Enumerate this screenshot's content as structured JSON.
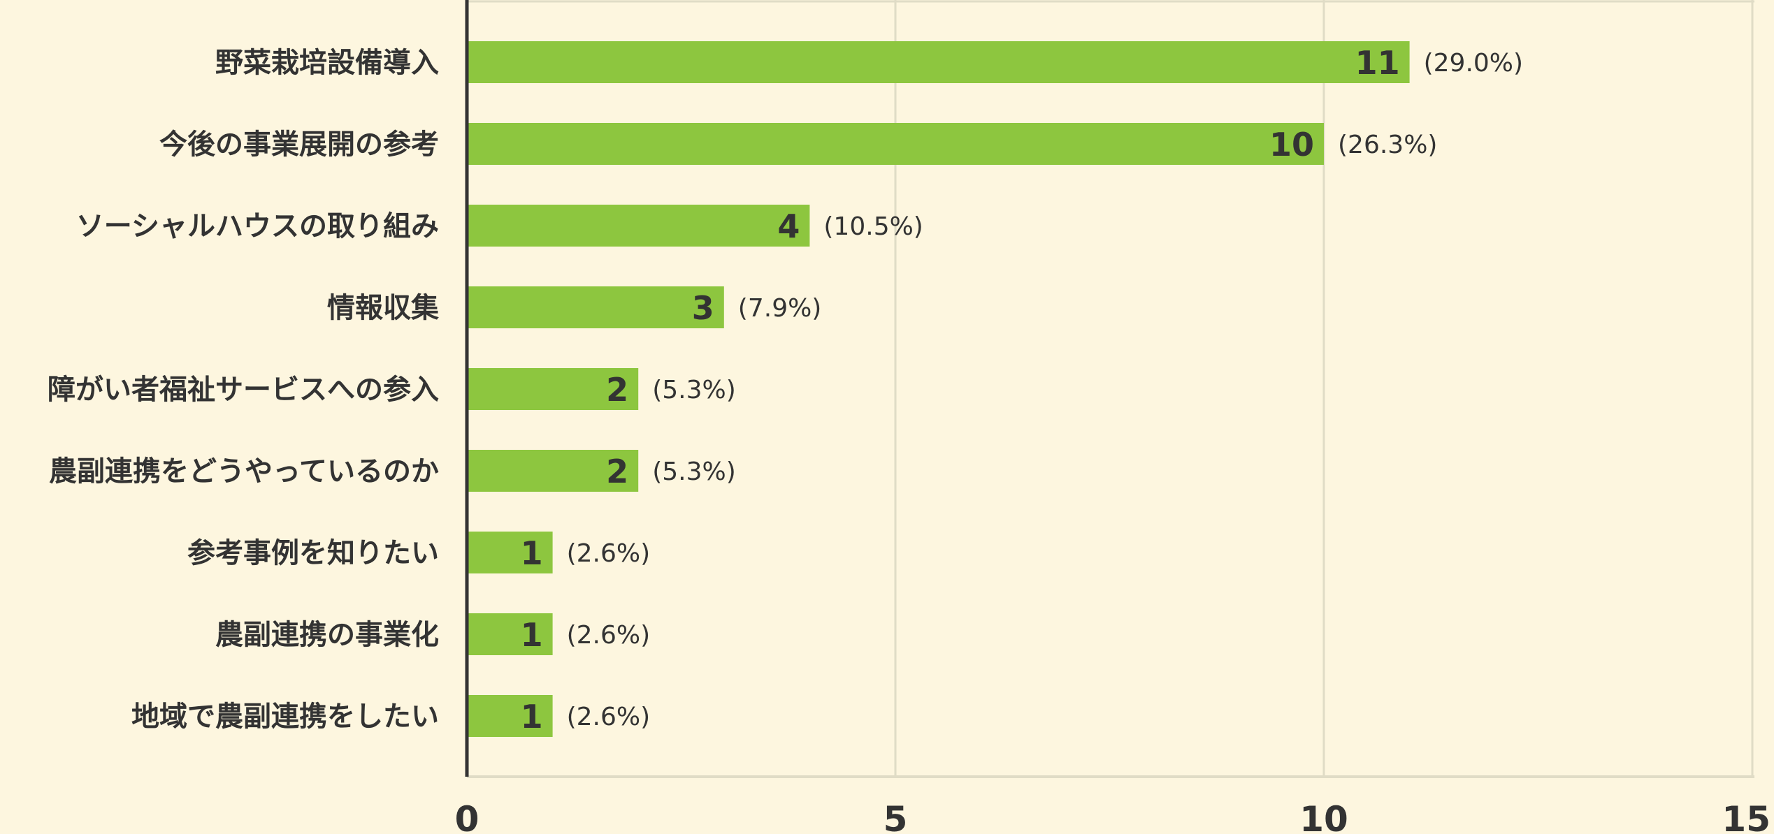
{
  "colors": {
    "background": "#fdf6df",
    "bar": "#8dc63f",
    "grid": "#e0dcc6",
    "axis": "#333333",
    "text": "#333333"
  },
  "chart_data": {
    "type": "bar",
    "orientation": "horizontal",
    "categories": [
      "野菜栽培設備導入",
      "今後の事業展開の参考",
      "ソーシャルハウスの取り組み",
      "情報収集",
      "障がい者福祉サービスへの参入",
      "農副連携をどうやっているのか",
      "参考事例を知りたい",
      "農副連携の事業化",
      "地域で農副連携をしたい"
    ],
    "values": [
      11,
      10,
      4,
      3,
      2,
      2,
      1,
      1,
      1
    ],
    "percent_labels": [
      "(29.0%)",
      "(26.3%)",
      "(10.5%)",
      "(7.9%)",
      "(5.3%)",
      "(5.3%)",
      "(2.6%)",
      "(2.6%)",
      "(2.6%)"
    ],
    "xlim": [
      0,
      15
    ],
    "xticks": [
      0,
      5,
      10,
      15
    ],
    "title": "",
    "xlabel": "",
    "ylabel": "",
    "grid": true,
    "legend": "none"
  }
}
